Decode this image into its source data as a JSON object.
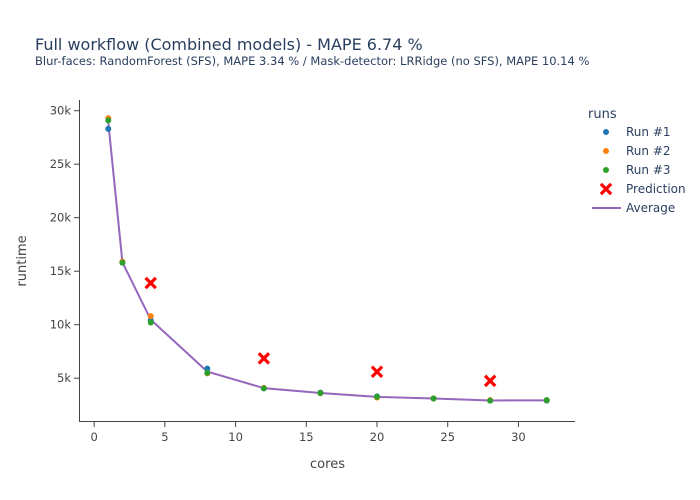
{
  "chart_data": {
    "type": "line",
    "title": "Full workflow (Combined models) - MAPE 6.74 %",
    "subtitle": "Blur-faces: RandomForest (SFS), MAPE 3.34 % / Mask-detector: LRRidge (no SFS), MAPE 10.14 %",
    "xlabel": "cores",
    "ylabel": "runtime",
    "xlim": [
      -1,
      34
    ],
    "ylim": [
      1000,
      31000
    ],
    "xticks": [
      0,
      5,
      10,
      15,
      20,
      25,
      30
    ],
    "xtick_labels": [
      "0",
      "5",
      "10",
      "15",
      "20",
      "25",
      "30"
    ],
    "yticks": [
      5000,
      10000,
      15000,
      20000,
      25000,
      30000
    ],
    "ytick_labels": [
      "5k",
      "10k",
      "15k",
      "20k",
      "25k",
      "30k"
    ],
    "grid": false,
    "legend": {
      "title": "runs",
      "placement": "right"
    },
    "series": [
      {
        "name": "Run #1",
        "mode": "markers",
        "marker": "circle",
        "color": "#1f77b4",
        "x": [
          1,
          2,
          4,
          8,
          12,
          16,
          20,
          24,
          28,
          32
        ],
        "y": [
          28300,
          15800,
          10400,
          5900,
          4050,
          3650,
          3300,
          3100,
          2900,
          2900
        ]
      },
      {
        "name": "Run #2",
        "mode": "markers",
        "marker": "circle",
        "color": "#ff7f0e",
        "x": [
          1,
          2,
          4,
          8,
          12,
          16,
          20,
          24,
          28,
          32
        ],
        "y": [
          29300,
          15900,
          10800,
          5450,
          4100,
          3600,
          3200,
          3100,
          2950,
          2950
        ]
      },
      {
        "name": "Run #3",
        "mode": "markers",
        "marker": "circle",
        "color": "#2ca02c",
        "x": [
          1,
          2,
          4,
          8,
          12,
          16,
          20,
          24,
          28,
          32
        ],
        "y": [
          29100,
          15800,
          10200,
          5500,
          4050,
          3600,
          3250,
          3100,
          2900,
          2950
        ]
      },
      {
        "name": "Prediction",
        "mode": "markers",
        "marker": "x",
        "color": "#ff0000",
        "x": [
          4,
          12,
          20,
          28
        ],
        "y": [
          13900,
          6850,
          5600,
          4750
        ]
      },
      {
        "name": "Average",
        "mode": "line",
        "color": "#9467bd",
        "x": [
          1,
          2,
          4,
          8,
          12,
          16,
          20,
          24,
          28,
          32
        ],
        "y": [
          28900,
          15830,
          10470,
          5620,
          4070,
          3620,
          3250,
          3100,
          2920,
          2930
        ]
      }
    ]
  }
}
